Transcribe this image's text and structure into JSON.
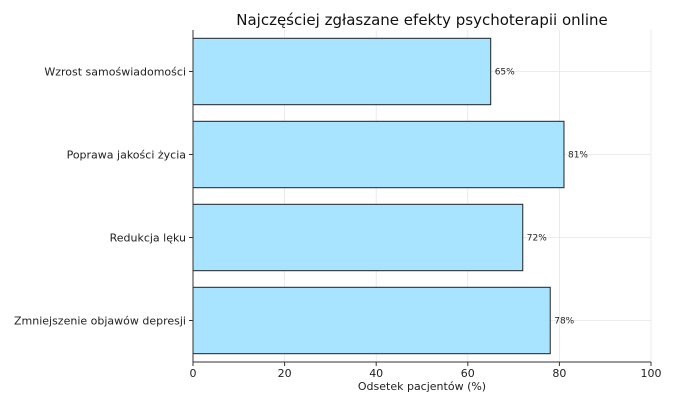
{
  "chart_data": {
    "type": "bar",
    "orientation": "horizontal",
    "title": "Najczęściej zgłaszane efekty psychoterapii online",
    "xlabel": "Odsetek pacjentów (%)",
    "ylabel": "",
    "categories": [
      "Wzrost samoświadomości",
      "Poprawa jakości życia",
      "Redukcja lęku",
      "Zmniejszenie objawów depresji"
    ],
    "values": [
      65,
      81,
      72,
      78
    ],
    "value_labels": [
      "65%",
      "81%",
      "72%",
      "78%"
    ],
    "xlim": [
      0,
      100
    ],
    "xticks": [
      0,
      20,
      40,
      60,
      80,
      100
    ],
    "xtick_labels": [
      "0",
      "20",
      "40",
      "60",
      "80",
      "100"
    ],
    "grid": true,
    "bar_color": "#a8e4ff",
    "edge_color": "#222222"
  }
}
